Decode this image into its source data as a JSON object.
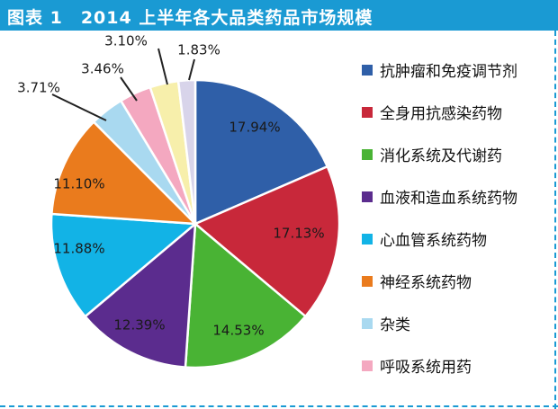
{
  "title": "图表 1　2014 上半年各大品类药品市场规模",
  "colors": {
    "title_bar": "#1a9ad3",
    "border": "#1a9ad3"
  },
  "chart_data": {
    "type": "pie",
    "title": "2014 上半年各大品类药品市场规模",
    "slices": [
      {
        "label": "抗肿瘤和免疫调节剂",
        "value": 17.94,
        "text": "17.94%",
        "color": "#2f5fa8"
      },
      {
        "label": "全身用抗感染药物",
        "value": 17.13,
        "text": "17.13%",
        "color": "#c8283a"
      },
      {
        "label": "消化系统及代谢药",
        "value": 14.53,
        "text": "14.53%",
        "color": "#49b334"
      },
      {
        "label": "血液和造血系统药物",
        "value": 12.39,
        "text": "12.39%",
        "color": "#5b2c8e"
      },
      {
        "label": "心血管系统药物",
        "value": 11.88,
        "text": "11.88%",
        "color": "#12b3e6"
      },
      {
        "label": "神经系统药物",
        "value": 11.1,
        "text": "11.10%",
        "color": "#ea7b1d"
      },
      {
        "label": "杂类",
        "value": 3.71,
        "text": "3.71%",
        "color": "#a9d9f0"
      },
      {
        "label": "呼吸系统用药",
        "value": 3.46,
        "text": "3.46%",
        "color": "#f4a8c0"
      },
      {
        "label": "",
        "value": 3.1,
        "text": "3.10%",
        "color": "#f7efab"
      },
      {
        "label": "",
        "value": 1.83,
        "text": "1.83%",
        "color": "#d8d4ea"
      }
    ],
    "legend_position": "right",
    "legend": [
      {
        "label": "抗肿瘤和免疫调节剂",
        "color": "#2f5fa8"
      },
      {
        "label": "全身用抗感染药物",
        "color": "#c8283a"
      },
      {
        "label": "消化系统及代谢药",
        "color": "#49b334"
      },
      {
        "label": "血液和造血系统药物",
        "color": "#5b2c8e"
      },
      {
        "label": "心血管系统药物",
        "color": "#12b3e6"
      },
      {
        "label": "神经系统药物",
        "color": "#ea7b1d"
      },
      {
        "label": "杂类",
        "color": "#a9d9f0"
      },
      {
        "label": "呼吸系统用药",
        "color": "#f4a8c0"
      }
    ]
  }
}
